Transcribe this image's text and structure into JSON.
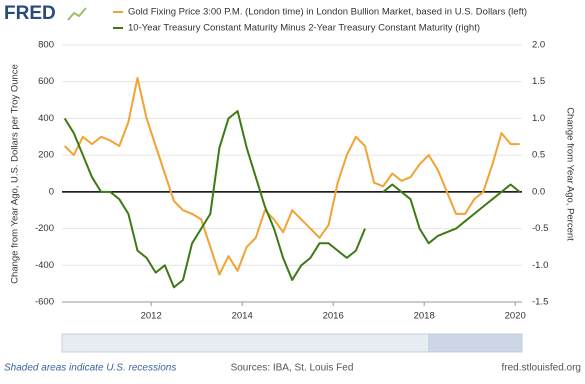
{
  "logo": "FRED",
  "chart_data": {
    "type": "line",
    "x": [
      2010.1,
      2010.3,
      2010.5,
      2010.7,
      2010.9,
      2011.1,
      2011.3,
      2011.5,
      2011.7,
      2011.9,
      2012.1,
      2012.3,
      2012.5,
      2012.7,
      2012.9,
      2013.1,
      2013.3,
      2013.5,
      2013.7,
      2013.9,
      2014.1,
      2014.3,
      2014.5,
      2014.7,
      2014.9,
      2015.1,
      2015.3,
      2015.5,
      2015.7,
      2015.9,
      2016.1,
      2016.3,
      2016.5,
      2016.7,
      2016.9,
      2017.1,
      2017.3,
      2017.5,
      2017.7,
      2017.9,
      2018.1,
      2018.3,
      2018.5,
      2018.7,
      2018.9,
      2019.1,
      2019.3,
      2019.5,
      2019.7,
      2019.9,
      2020.1
    ],
    "series": [
      {
        "name": "Gold Fixing Price 3:00 P.M. (London time) in London Bullion Market, based in U.S. Dollars (left)",
        "color": "#f2a333",
        "values": [
          250,
          200,
          300,
          260,
          300,
          280,
          250,
          380,
          620,
          400,
          250,
          100,
          -50,
          -100,
          -120,
          -150,
          -300,
          -450,
          -350,
          -430,
          -300,
          -250,
          -100,
          -150,
          -220,
          -100,
          -150,
          -200,
          -250,
          -180,
          50,
          200,
          300,
          250,
          50,
          30,
          100,
          60,
          80,
          150,
          200,
          120,
          0,
          -120,
          -120,
          -40,
          0,
          150,
          320,
          260,
          260
        ]
      },
      {
        "name": "10-Year Treasury Constant Maturity Minus 2-Year Treasury Constant Maturity (right)",
        "color": "#3d7a15",
        "axis": "y2",
        "values": [
          1.0,
          0.8,
          0.5,
          0.2,
          0.0,
          0.0,
          -0.1,
          -0.3,
          -0.8,
          -0.9,
          -1.1,
          -1.0,
          -1.3,
          -1.2,
          -0.7,
          -0.5,
          -0.3,
          0.6,
          1.0,
          1.1,
          0.6,
          0.2,
          -0.2,
          -0.5,
          -0.9,
          -1.2,
          -1.0,
          -0.9,
          -0.7,
          -0.7,
          -0.8,
          -0.9,
          -0.8,
          -0.5,
          null,
          0.0,
          0.1,
          0.0,
          -0.1,
          -0.5,
          -0.7,
          -0.6,
          -0.55,
          -0.5,
          -0.4,
          -0.3,
          -0.2,
          -0.1,
          0.0,
          0.1,
          0.0
        ]
      }
    ],
    "xlim": [
      2010.04,
      2020.15
    ],
    "xticks": [
      2012,
      2014,
      2016,
      2018,
      2020
    ],
    "ylim": [
      -600,
      800
    ],
    "yticks": [
      -600,
      -400,
      -200,
      0,
      200,
      400,
      600,
      800
    ],
    "y2lim": [
      -1.5,
      2.0
    ],
    "y2ticks": [
      -1.5,
      {
        "value": -1,
        "label": "-1.0"
      },
      -0.5,
      {
        "value": 0,
        "label": "0.0"
      },
      0.5,
      {
        "value": 1,
        "label": "1.0"
      },
      1.5,
      {
        "value": 2,
        "label": "2.0"
      }
    ],
    "ylabel": "Change from Year Ago, U.S. Dollars per Troy Ounce",
    "y2label": "Change from Year Ago, Percent",
    "grid": true
  },
  "footer": {
    "note": "Shaded areas indicate U.S. recessions",
    "source": "Sources: IBA, St. Louis Fed",
    "site": "fred.stlouisfed.org"
  }
}
